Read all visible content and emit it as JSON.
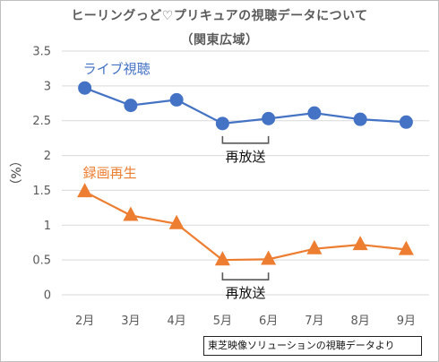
{
  "title_line1": "ヒーリングっど♡プリキュアの視聴データについて",
  "title_line2": "（関東広域）",
  "source_note": "東芝映像ソリューションの視聴データより",
  "colors": {
    "live": "#4472c4",
    "recorded": "#ed7d31",
    "grid": "#d9d9d9",
    "bracket": "#595959"
  },
  "chart_data": {
    "type": "line",
    "categories": [
      "2月",
      "3月",
      "4月",
      "5月",
      "6月",
      "7月",
      "8月",
      "9月"
    ],
    "ylabel": "（%）",
    "ylim": [
      0,
      3.5
    ],
    "yticks": [
      "0",
      "0.5",
      "1",
      "1.5",
      "2",
      "2.5",
      "3",
      "3.5"
    ],
    "grid": true,
    "series": [
      {
        "name": "ライブ視聴",
        "marker": "circle",
        "values": [
          2.97,
          2.72,
          2.8,
          2.46,
          2.53,
          2.61,
          2.52,
          2.48
        ]
      },
      {
        "name": "録画再生",
        "marker": "triangle",
        "values": [
          1.48,
          1.14,
          1.02,
          0.5,
          0.51,
          0.66,
          0.72,
          0.65
        ]
      }
    ],
    "annotations": [
      {
        "text": "再放送",
        "series": 0,
        "range": [
          "5月",
          "6月"
        ]
      },
      {
        "text": "再放送",
        "series": 1,
        "range": [
          "5月",
          "6月"
        ]
      }
    ]
  }
}
